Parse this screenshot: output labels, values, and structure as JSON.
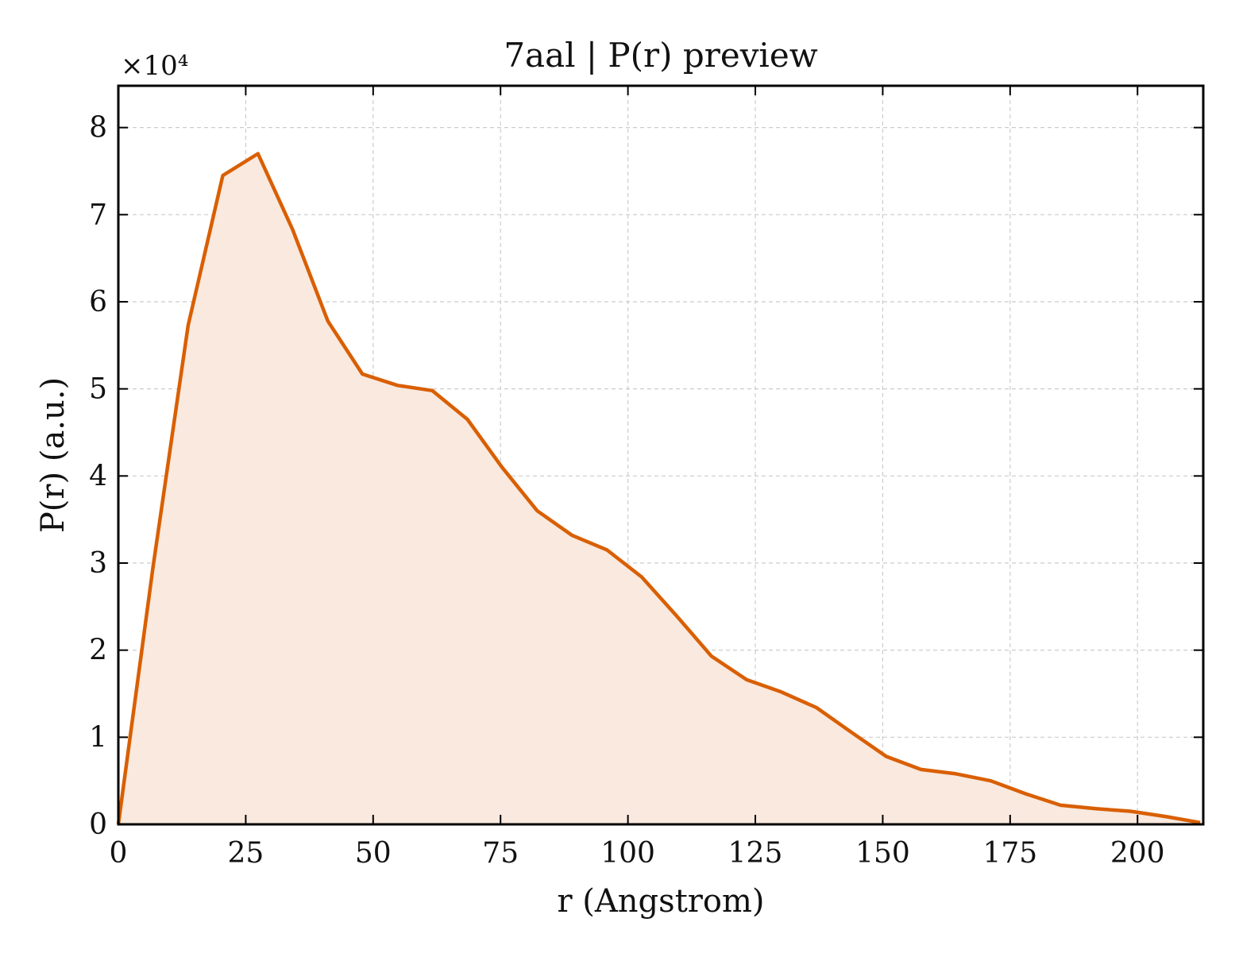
{
  "chart_data": {
    "type": "area",
    "title": "7aal | P(r) preview",
    "xlabel": "r (Angstrom)",
    "ylabel": "P(r) (a.u.)",
    "y_multiplier_label": "×10⁴",
    "y_scale_factor": 10000,
    "xlim": [
      0,
      212.9
    ],
    "ylim": [
      0,
      8.48
    ],
    "x_ticks": [
      0,
      25,
      50,
      75,
      100,
      125,
      150,
      175,
      200
    ],
    "x_tick_labels": [
      "0",
      "25",
      "50",
      "75",
      "100",
      "125",
      "150",
      "175",
      "200"
    ],
    "y_ticks": [
      0,
      1,
      2,
      3,
      4,
      5,
      6,
      7,
      8
    ],
    "y_tick_labels": [
      "0",
      "1",
      "2",
      "3",
      "4",
      "5",
      "6",
      "7",
      "8"
    ],
    "grid": true,
    "colors": {
      "line": "#d95f02",
      "fill": "#f9e9df"
    },
    "series": [
      {
        "x": [
          0,
          6.8,
          13.7,
          20.5,
          27.4,
          34.2,
          41.1,
          47.9,
          54.8,
          61.6,
          68.5,
          75.3,
          82.2,
          89.0,
          95.9,
          102.7,
          109.6,
          116.4,
          123.3,
          130.1,
          137.0,
          143.8,
          150.7,
          157.5,
          164.4,
          171.2,
          178.1,
          184.9,
          191.8,
          198.6,
          205.5,
          212.3
        ],
        "y": [
          0,
          2.95,
          5.73,
          7.45,
          7.7,
          6.83,
          5.78,
          5.17,
          5.04,
          4.98,
          4.65,
          4.1,
          3.6,
          3.32,
          3.15,
          2.84,
          2.39,
          1.93,
          1.66,
          1.52,
          1.34,
          1.06,
          0.78,
          0.63,
          0.58,
          0.5,
          0.35,
          0.22,
          0.18,
          0.15,
          0.09,
          0.02
        ]
      }
    ]
  }
}
